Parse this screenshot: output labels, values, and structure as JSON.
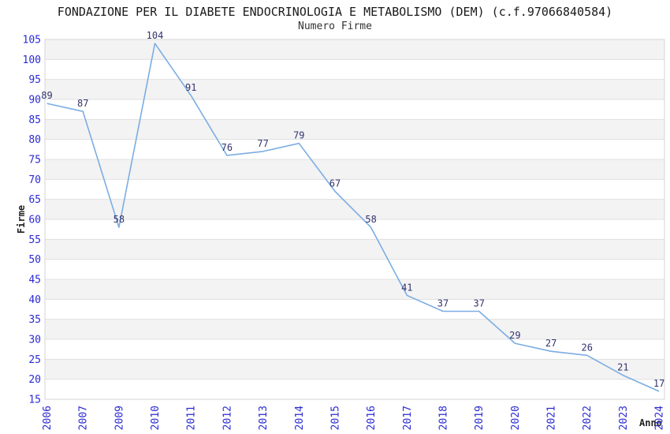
{
  "chart_data": {
    "type": "line",
    "title": "FONDAZIONE PER IL DIABETE ENDOCRINOLOGIA E METABOLISMO (DEM) (c.f.97066840584)",
    "subtitle": "Numero Firme",
    "xlabel": "Anno",
    "ylabel": "Firme",
    "categories": [
      "2006",
      "2007",
      "2009",
      "2010",
      "2011",
      "2012",
      "2013",
      "2014",
      "2015",
      "2016",
      "2017",
      "2018",
      "2019",
      "2020",
      "2021",
      "2022",
      "2023",
      "2024"
    ],
    "values": [
      89,
      87,
      58,
      104,
      91,
      76,
      77,
      79,
      67,
      58,
      41,
      37,
      37,
      29,
      27,
      26,
      21,
      17
    ],
    "ylim": [
      15,
      105
    ],
    "y_tick_step": 5,
    "grid": true,
    "legend": "none",
    "band_pattern": "alternating 5-unit horizontal bands, shaded 20-25 up to 100-105",
    "colors": {
      "line": "#7bade2",
      "data_label": "#333370",
      "tick_label": "#2a2ad4",
      "band": "#f3f3f3",
      "grid": "#e0e0e0",
      "plot_border": "#d4d4d4",
      "title": "#1a1a1a",
      "subtitle": "#333333",
      "axis_title": "#222222"
    }
  }
}
